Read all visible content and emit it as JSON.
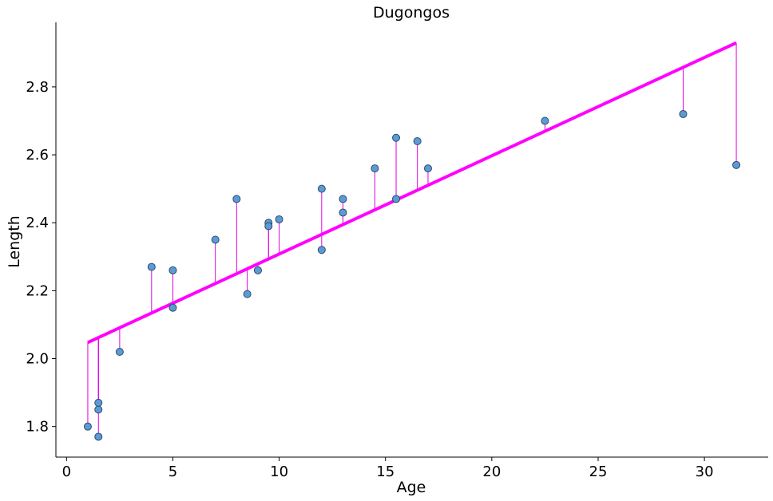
{
  "chart_data": {
    "type": "scatter",
    "title": "Dugongos",
    "xlabel": "Age",
    "ylabel": "Length",
    "xlim": [
      -0.5,
      33
    ],
    "ylim": [
      1.71,
      2.99
    ],
    "xticks": [
      0,
      5,
      10,
      15,
      20,
      25,
      30
    ],
    "yticks": [
      1.8,
      2.0,
      2.2,
      2.4,
      2.6,
      2.8
    ],
    "ytick_labels": [
      "1.8",
      "2.0",
      "2.2",
      "2.4",
      "2.6",
      "2.8"
    ],
    "grid": false,
    "legend": "none",
    "points": {
      "x": [
        1.0,
        1.5,
        1.5,
        1.5,
        2.5,
        4.0,
        5.0,
        5.0,
        7.0,
        8.0,
        8.5,
        9.0,
        9.5,
        9.5,
        10.0,
        12.0,
        12.0,
        13.0,
        13.0,
        14.5,
        15.5,
        15.5,
        16.5,
        17.0,
        22.5,
        29.0,
        31.5
      ],
      "y": [
        1.8,
        1.85,
        1.87,
        1.77,
        2.02,
        2.27,
        2.15,
        2.26,
        2.35,
        2.47,
        2.19,
        2.26,
        2.4,
        2.39,
        2.41,
        2.5,
        2.32,
        2.43,
        2.47,
        2.56,
        2.65,
        2.47,
        2.64,
        2.56,
        2.7,
        2.72,
        2.57
      ]
    },
    "fit_line": {
      "intercept": 2.0185,
      "slope": 0.02893,
      "x_range": [
        1.0,
        31.5
      ]
    },
    "residual_lines": true,
    "colors": {
      "point_fill": "#5b9bd5",
      "point_edge": "#2f4a6a",
      "fit_line": "#ff00ff",
      "residual": "#e000e0",
      "axis": "#000000"
    }
  }
}
